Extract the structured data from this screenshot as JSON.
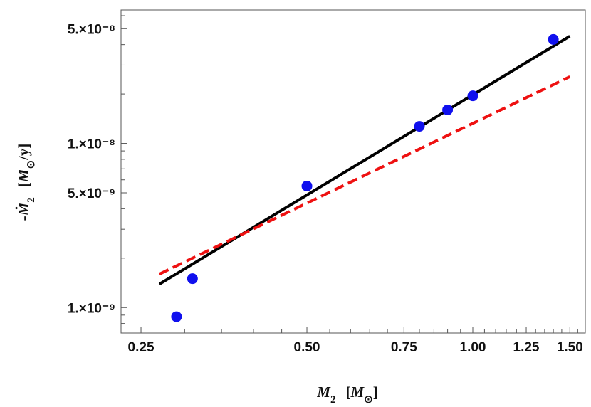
{
  "chart_data": {
    "type": "scatter",
    "xscale": "log",
    "yscale": "log",
    "xlim": [
      0.23,
      1.6
    ],
    "ylim": [
      7e-10,
      6.5e-08
    ],
    "x_ticks": [
      {
        "value": 0.25,
        "label": "0.25"
      },
      {
        "value": 0.5,
        "label": "0.50"
      },
      {
        "value": 0.75,
        "label": "0.75"
      },
      {
        "value": 1.0,
        "label": "1.00"
      },
      {
        "value": 1.25,
        "label": "1.25"
      },
      {
        "value": 1.5,
        "label": "1.50"
      }
    ],
    "y_ticks": [
      {
        "value": 1e-09,
        "label": "1.×10⁻⁹"
      },
      {
        "value": 5e-09,
        "label": "5.×10⁻⁹"
      },
      {
        "value": 1e-08,
        "label": "1.×10⁻⁸"
      },
      {
        "value": 5e-08,
        "label": "5.×10⁻⁸"
      }
    ],
    "xlabel": "M₂  [M⊙]",
    "ylabel": "-Ṁ₂  [M⊙/y]",
    "points": [
      {
        "x": 0.29,
        "y": 8.8e-10
      },
      {
        "x": 0.31,
        "y": 1.5e-09
      },
      {
        "x": 0.5,
        "y": 5.5e-09
      },
      {
        "x": 0.8,
        "y": 1.27e-08
      },
      {
        "x": 0.9,
        "y": 1.6e-08
      },
      {
        "x": 1.0,
        "y": 1.95e-08
      },
      {
        "x": 1.4,
        "y": 4.3e-08
      }
    ],
    "lines": [
      {
        "style": "solid",
        "color": "#000000",
        "x": [
          0.27,
          1.5
        ],
        "y": [
          1.39e-09,
          4.5e-08
        ]
      },
      {
        "style": "dashed",
        "color": "#ee1111",
        "x": [
          0.27,
          1.5
        ],
        "y": [
          1.6e-09,
          2.55e-08
        ]
      }
    ],
    "point_color": "#1010ee",
    "grid": false,
    "legend": "none"
  }
}
